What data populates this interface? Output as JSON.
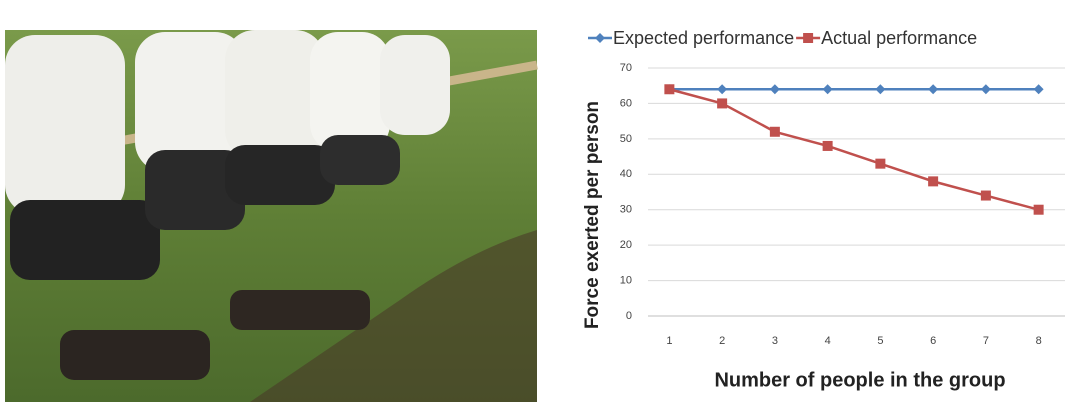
{
  "chart_data": {
    "type": "line",
    "categories": [
      "1",
      "2",
      "3",
      "4",
      "5",
      "6",
      "7",
      "8"
    ],
    "series": [
      {
        "name": "Expected performance",
        "color": "#4f81bd",
        "marker": "diamond",
        "values": [
          64,
          64,
          64,
          64,
          64,
          64,
          64,
          64
        ]
      },
      {
        "name": "Actual performance",
        "color": "#c0504d",
        "marker": "square",
        "values": [
          64,
          60,
          52,
          48,
          43,
          38,
          34,
          30
        ]
      }
    ],
    "ylim": [
      0,
      70
    ],
    "yticks": [
      0,
      10,
      20,
      30,
      40,
      50,
      60,
      70
    ],
    "grid": true,
    "legend": "top",
    "xlabel": "Number of people in the group",
    "ylabel": "Force exerted per person"
  }
}
